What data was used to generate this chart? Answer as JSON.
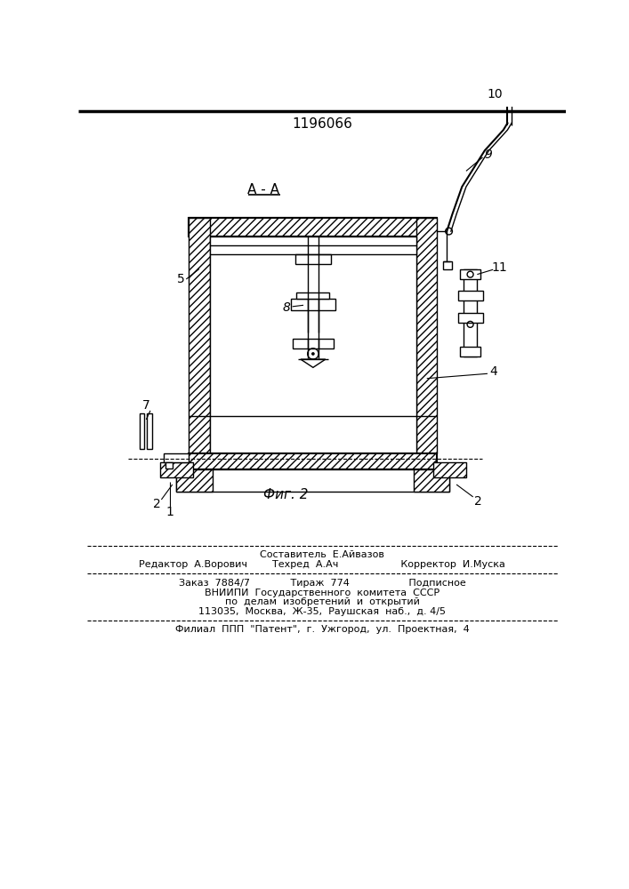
{
  "patent_number": "1196066",
  "section_label": "A - A",
  "fig_label": "Фиг. 2",
  "background_color": "#ffffff",
  "line_color": "#000000",
  "footer_sestavitel": "Составитель  Е.Айвазов",
  "footer_redaktor": "Редактор  А.Ворович        Техред  А.Ач                    Корректор  И.Муска",
  "footer_zakaz": "Заказ  7884/7             Тираж  774                   Подписное",
  "footer_vniipи": "ВНИИПИ  Государственного  комитета  СССР",
  "footer_po": "по  делам  изобретений  и  открытий",
  "footer_addr": "113035,  Москва,  Ж-35,  Раушская  наб.,  д. 4/5",
  "footer_filial": "Филиал  ППП  \"Патент\",  г.  Ужгород,  ул.  Проектная,  4"
}
